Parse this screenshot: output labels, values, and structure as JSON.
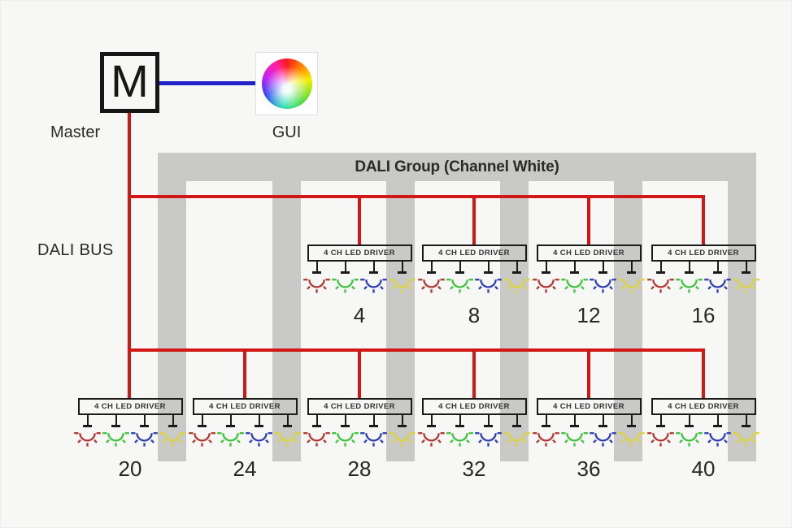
{
  "master": {
    "label": "M",
    "caption": "Master"
  },
  "gui": {
    "caption": "GUI"
  },
  "dali_bus_label": "DALI BUS",
  "group_title": "DALI Group (Channel White)",
  "driver_box_label": "4 CH LED DRIVER",
  "rows": {
    "top": {
      "addresses": [
        "4",
        "8",
        "12",
        "16"
      ]
    },
    "bottom": {
      "addresses": [
        "20",
        "24",
        "28",
        "32",
        "36",
        "40"
      ]
    }
  },
  "led_channels": [
    {
      "name": "red",
      "color": "#b43832"
    },
    {
      "name": "green",
      "color": "#3ec43e"
    },
    {
      "name": "blue",
      "color": "#2e3fb5"
    },
    {
      "name": "yellow",
      "color": "#ddd435"
    }
  ],
  "colors": {
    "bus_red": "#d21717",
    "link_blue": "#2423c8",
    "strip_gray": "#c9c9c8",
    "background": "#f7f7f6",
    "text": "#2b2a29"
  }
}
